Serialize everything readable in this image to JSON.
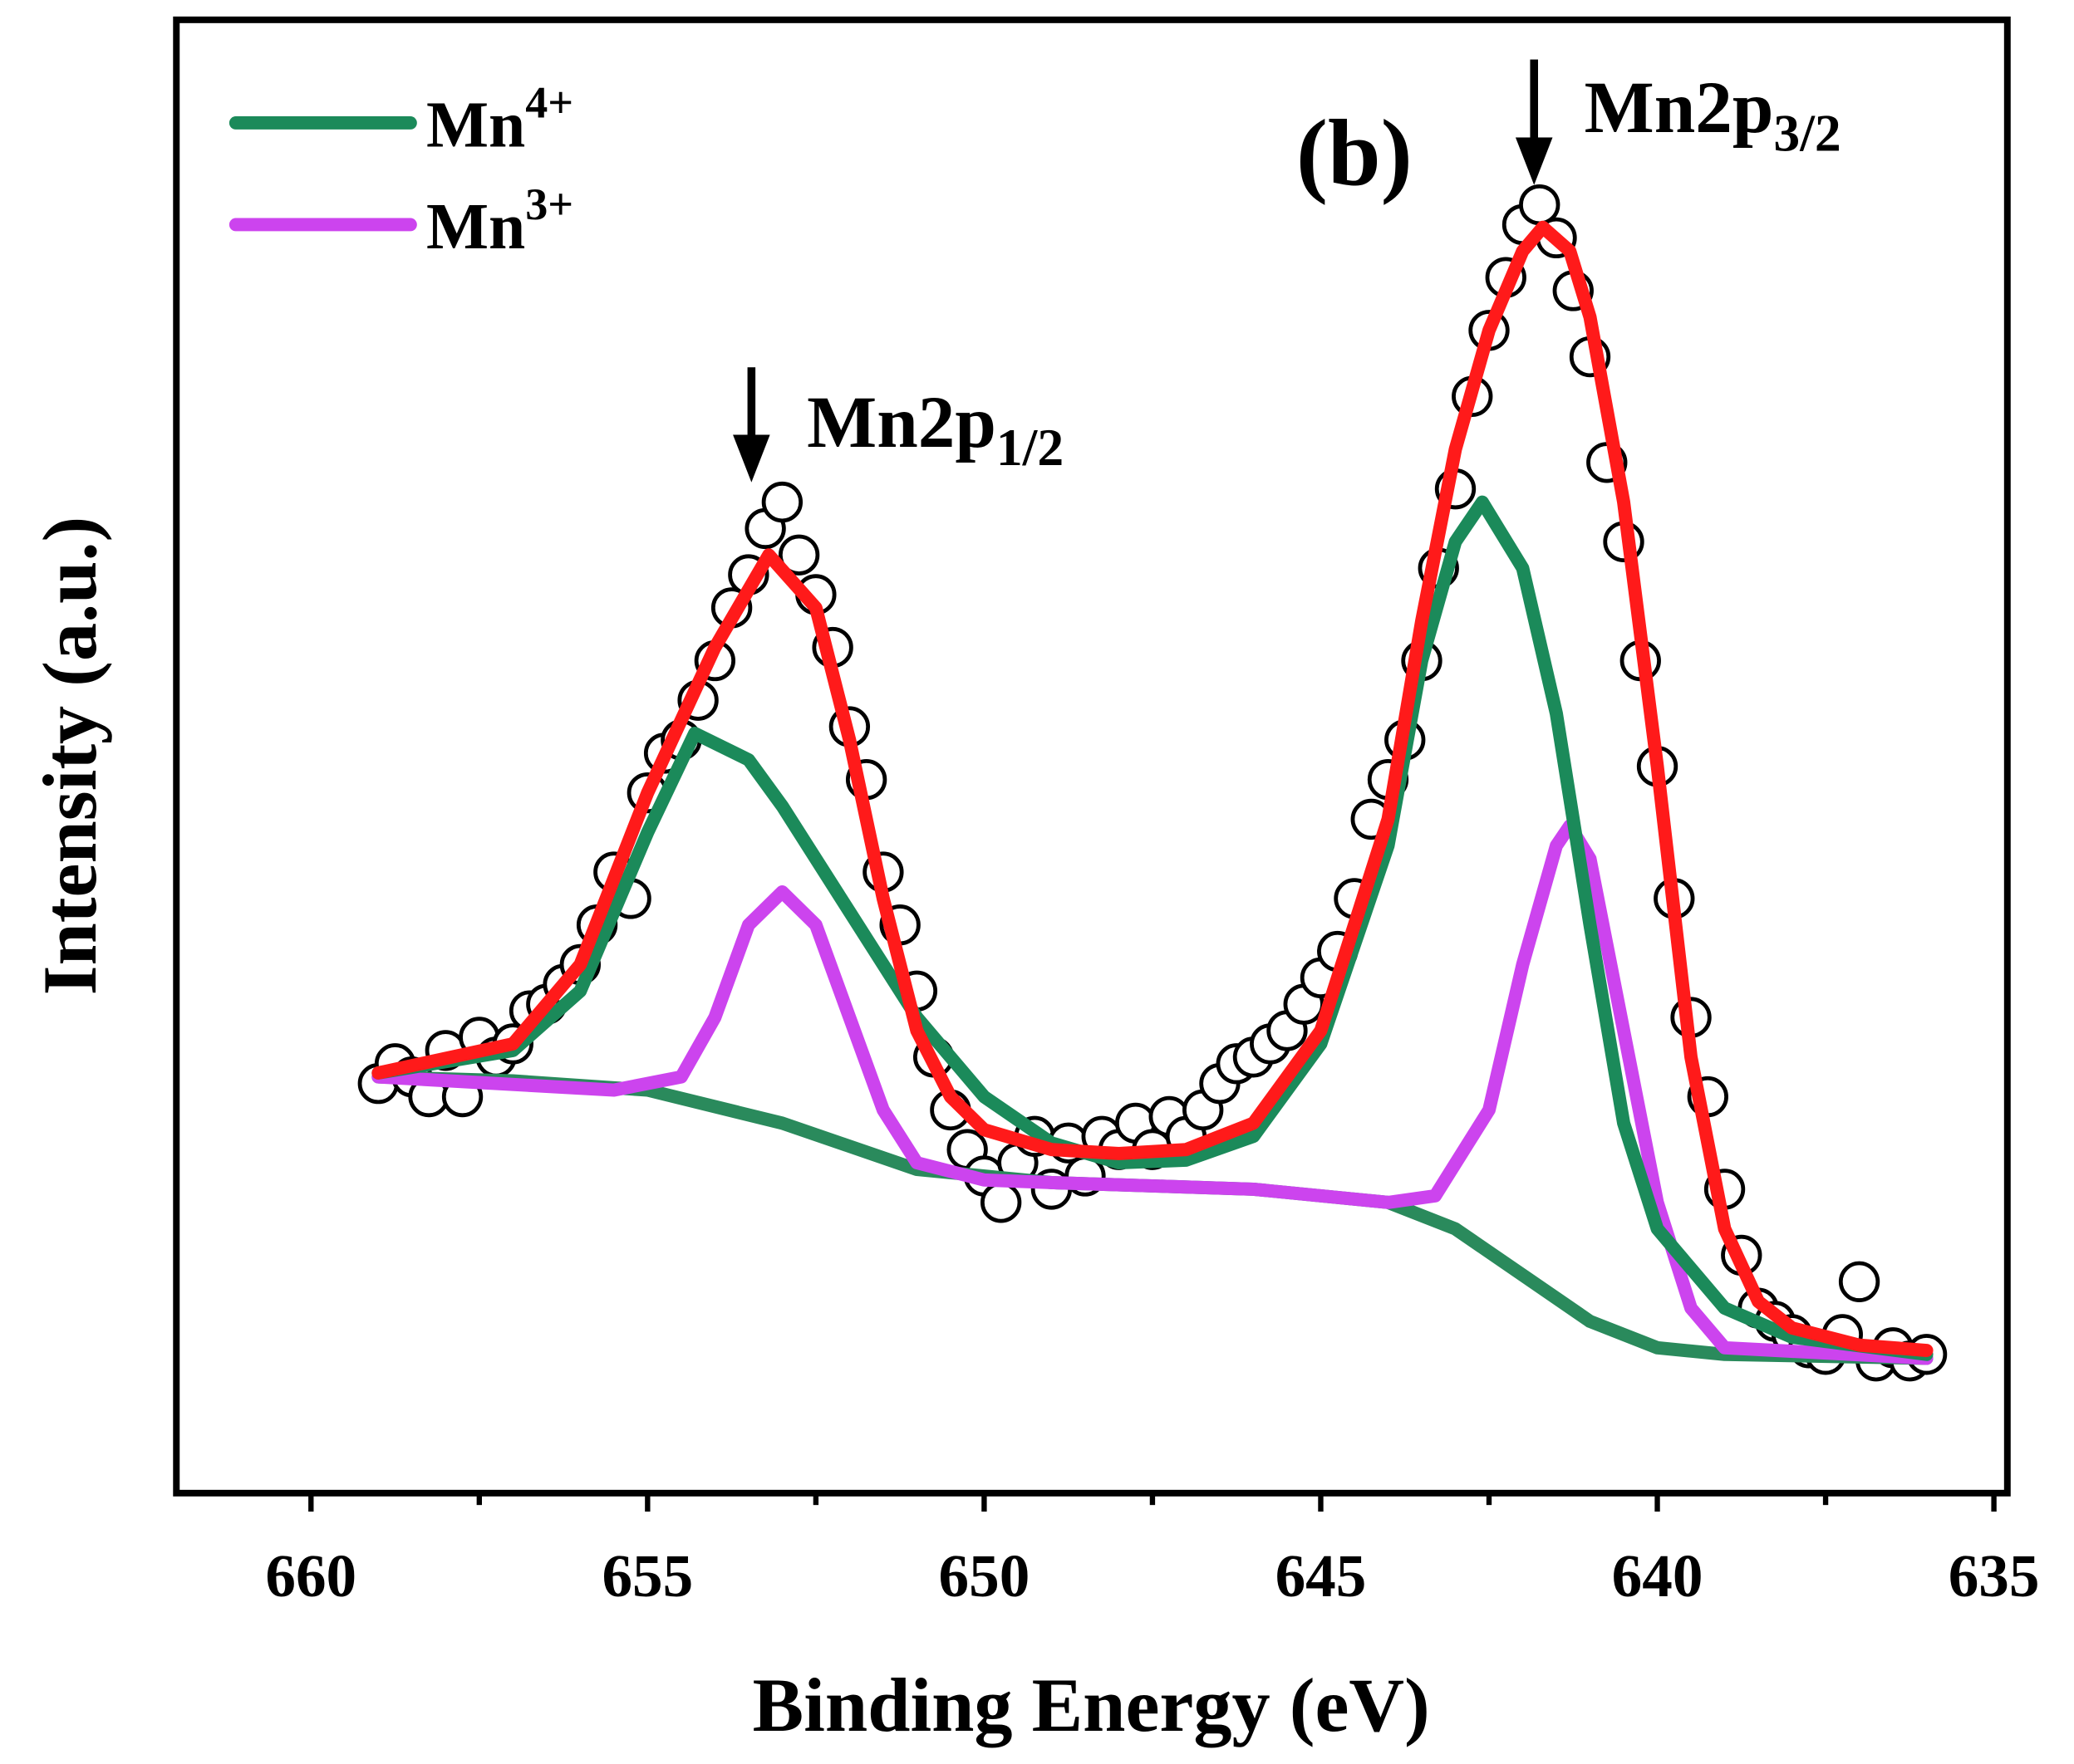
{
  "chart_data": {
    "type": "line",
    "x_label": "Binding Energy (eV)",
    "y_label": "Intensity (a.u.)",
    "xlim": [
      662,
      634.8
    ],
    "ylim": [
      0,
      111.5
    ],
    "xticks": [
      660,
      655,
      650,
      645,
      640,
      635
    ],
    "xminor": [
      657.5,
      652.5,
      647.5,
      642.5,
      637.5
    ],
    "legend": "upper left",
    "annotations": [
      {
        "text": "(b)"
      },
      {
        "text": "Mn2p",
        "sub": "1/2"
      },
      {
        "text": "Mn2p",
        "sub": "3/2"
      }
    ],
    "series": [
      {
        "type": "scatter",
        "color": "#000000",
        "x": [
          659,
          658.75,
          658.5,
          658.25,
          658,
          657.75,
          657.5,
          657.25,
          657,
          656.75,
          656.5,
          656.25,
          656,
          655.75,
          655.5,
          655.25,
          655,
          654.75,
          654.5,
          654.25,
          654,
          653.75,
          653.5,
          653.25,
          653,
          652.75,
          652.5,
          652.25,
          652,
          651.75,
          651.5,
          651.25,
          651,
          650.75,
          650.5,
          650.25,
          650,
          649.75,
          649.5,
          649.25,
          649,
          648.75,
          648.5,
          648.25,
          648,
          647.75,
          647.5,
          647.25,
          647,
          646.75,
          646.5,
          646.25,
          646,
          645.75,
          645.5,
          645.25,
          645,
          644.75,
          644.5,
          644.25,
          644,
          643.75,
          643.5,
          643.25,
          643,
          642.75,
          642.5,
          642.25,
          642,
          641.75,
          641.5,
          641.25,
          641,
          640.75,
          640.5,
          640.25,
          640,
          639.75,
          639.5,
          639.25,
          639,
          638.75,
          638.5,
          638.25,
          638,
          637.75,
          637.5,
          637.25,
          637,
          636.75,
          636.5,
          636.25,
          636
        ],
        "values": [
          31,
          32.5,
          31.5,
          30,
          33.5,
          30,
          34.5,
          33,
          34,
          36.5,
          37,
          38.5,
          40,
          43,
          47,
          45,
          53,
          56,
          57,
          60,
          63,
          67,
          69.5,
          73,
          75,
          71,
          68,
          64,
          58,
          54,
          47,
          43,
          38,
          33,
          29,
          26,
          24,
          22,
          25,
          27,
          23,
          26.5,
          24,
          27,
          26,
          28,
          26,
          28.5,
          27,
          29,
          31,
          32.5,
          33,
          34,
          35,
          37,
          39,
          41,
          45,
          51,
          54,
          57,
          63,
          70,
          76,
          83,
          88,
          92,
          96,
          97.5,
          95,
          91,
          86,
          78,
          72,
          63,
          55,
          45,
          36,
          30,
          23,
          18,
          14,
          13,
          12,
          11,
          10.5,
          12,
          16,
          10,
          11,
          10,
          10.5
        ]
      },
      {
        "type": "line",
        "color": "#2a8a5c",
        "x": [
          659,
          657,
          655,
          653,
          651,
          649,
          646,
          644,
          643,
          642,
          641,
          640,
          639,
          636
        ],
        "values": [
          31.5,
          31.2,
          30.5,
          28,
          24.5,
          23.5,
          23,
          22,
          20,
          16.5,
          13,
          11,
          10.5,
          10.2
        ]
      },
      {
        "type": "line",
        "name": "Mn",
        "name_sup": "3+",
        "color": "#cc44ee",
        "x": [
          659,
          655.5,
          654.5,
          654,
          653.5,
          653,
          652.5,
          652,
          651.5,
          651,
          650,
          649,
          646,
          644,
          643.3,
          642.5,
          642,
          641.5,
          641.3,
          641,
          640.5,
          640,
          639.5,
          639,
          636
        ],
        "values": [
          31.5,
          30.5,
          31.5,
          36,
          43,
          45.5,
          43,
          36,
          29,
          25,
          23.7,
          23.5,
          23,
          22,
          22.5,
          29,
          40,
          49,
          50.5,
          48,
          35,
          22,
          14,
          11,
          10.2
        ]
      },
      {
        "type": "line",
        "name": "Mn",
        "name_sup": "4+",
        "color": "#1b8a5a",
        "x": [
          659,
          657,
          656,
          655,
          654.3,
          653.5,
          653,
          652,
          651,
          650,
          649,
          648,
          647,
          646,
          645,
          644,
          643.5,
          643,
          642.6,
          642,
          641.5,
          641,
          640.5,
          640,
          639,
          638,
          636
        ],
        "values": [
          31.8,
          33.5,
          38,
          50,
          57.5,
          55.5,
          52,
          44,
          36,
          30,
          26.5,
          25,
          25.2,
          27,
          34,
          49,
          63,
          72,
          75,
          70,
          59,
          43,
          28,
          20,
          14,
          11.8,
          10.5
        ]
      },
      {
        "type": "line",
        "color": "#ff1a1a",
        "x": [
          659,
          657,
          656,
          655,
          654,
          653.2,
          652.5,
          652,
          651.5,
          651,
          650.5,
          650,
          649,
          648,
          647,
          646,
          645,
          644,
          643.5,
          643,
          642.5,
          642,
          641.7,
          641.3,
          641,
          640.5,
          640,
          639.5,
          639,
          638.5,
          638,
          637,
          636
        ],
        "values": [
          31.8,
          34,
          40,
          53,
          64,
          71,
          67,
          57,
          45,
          35,
          30,
          27.5,
          26,
          25.7,
          26,
          28,
          35,
          51,
          66,
          79,
          88,
          94,
          95.8,
          94,
          89,
          75,
          55,
          33,
          20,
          14.5,
          12.5,
          11.2,
          10.8
        ]
      }
    ]
  }
}
